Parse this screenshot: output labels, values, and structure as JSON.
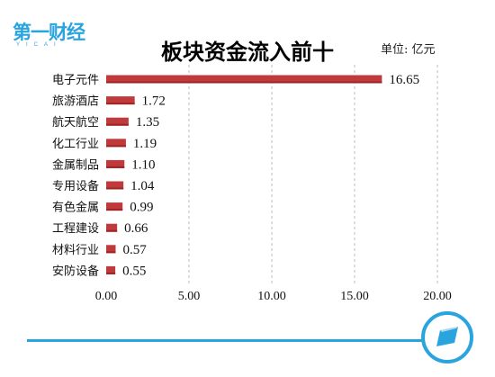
{
  "header": {
    "logo_text": "第一财经",
    "logo_sub": "YICAI",
    "title": "板块资金流入前十",
    "unit": "单位: 亿元"
  },
  "colors": {
    "bar": "#c0393b",
    "bar_dark": "#9e2526",
    "accent": "#2aa4de",
    "grid": "#bdbdbd"
  },
  "chart_data": {
    "type": "bar",
    "orientation": "horizontal",
    "title": "板块资金流入前十",
    "categories": [
      "电子元件",
      "旅游酒店",
      "航天航空",
      "化工行业",
      "金属制品",
      "专用设备",
      "有色金属",
      "工程建设",
      "材料行业",
      "安防设备"
    ],
    "values": [
      16.65,
      1.72,
      1.35,
      1.19,
      1.1,
      1.04,
      0.99,
      0.66,
      0.57,
      0.55
    ],
    "value_labels": [
      "16.65",
      "1.72",
      "1.35",
      "1.19",
      "1.10",
      "1.04",
      "0.99",
      "0.66",
      "0.57",
      "0.55"
    ],
    "xlim": [
      0,
      20
    ],
    "xticks": [
      0,
      5,
      10,
      15,
      20
    ],
    "xtick_labels": [
      "0.00",
      "5.00",
      "10.00",
      "15.00",
      "20.00"
    ],
    "grid": "vertical dashed",
    "legend": "none"
  }
}
